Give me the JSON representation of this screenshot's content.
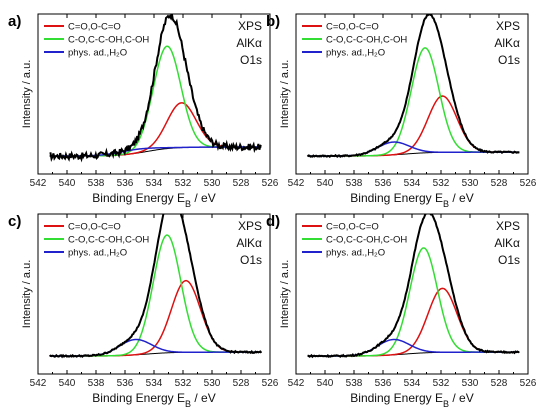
{
  "chart_data": [
    {
      "type": "line",
      "panel_label": "a)",
      "xlabel_main": "Binding Energy E",
      "xlabel_sub": "B",
      "xlabel_unit": " / eV",
      "ylabel": "Intensity / a.u.",
      "xlim": [
        542,
        526
      ],
      "xticks": [
        "542",
        "540",
        "538",
        "536",
        "534",
        "532",
        "530",
        "528",
        "526"
      ],
      "annotations": [
        "XPS",
        "AlKα",
        "O1s"
      ],
      "noisy": true,
      "components": [
        {
          "name": "C=O,O-C=O",
          "color": "#dd1111",
          "center": 532.1,
          "amplitude": 0.35,
          "width": 1.0
        },
        {
          "name": "C-O,C-C-OH,C-OH",
          "color": "#33dd33",
          "center": 533.1,
          "amplitude": 0.8,
          "width": 0.95
        },
        {
          "name": "phys. ad.,H₂O",
          "color": "#2222cc",
          "center": 535.3,
          "amplitude": 0.03,
          "width": 1.3
        }
      ],
      "baseline": {
        "left": 0.07,
        "right": 0.0
      }
    },
    {
      "type": "line",
      "panel_label": "b)",
      "xlabel_main": "Binding Energy E",
      "xlabel_sub": "B",
      "xlabel_unit": " / eV",
      "ylabel": "Intensity / a.u.",
      "xlim": [
        542,
        526
      ],
      "xticks": [
        "542",
        "540",
        "538",
        "536",
        "534",
        "532",
        "530",
        "528",
        "526"
      ],
      "annotations": [
        "XPS",
        "AlKα",
        "O1s"
      ],
      "noisy": false,
      "components": [
        {
          "name": "C=O,O-C=O",
          "color": "#dd1111",
          "center": 531.9,
          "amplitude": 0.44,
          "width": 1.0
        },
        {
          "name": "C-O,C-C-OH,C-OH",
          "color": "#33dd33",
          "center": 533.1,
          "amplitude": 0.82,
          "width": 0.95
        },
        {
          "name": "phys. ad.,H₂O",
          "color": "#2222cc",
          "center": 535.3,
          "amplitude": 0.1,
          "width": 1.1
        }
      ],
      "baseline": {
        "left": 0.03,
        "right": 0.0
      }
    },
    {
      "type": "line",
      "panel_label": "c)",
      "xlabel_main": "Binding Energy E",
      "xlabel_sub": "B",
      "xlabel_unit": " / eV",
      "ylabel": "Intensity / a.u.",
      "xlim": [
        542,
        526
      ],
      "xticks": [
        "542",
        "540",
        "538",
        "536",
        "534",
        "532",
        "530",
        "528",
        "526"
      ],
      "annotations": [
        "XPS",
        "AlKα",
        "O1s"
      ],
      "noisy": false,
      "components": [
        {
          "name": "C=O,O-C=O",
          "color": "#dd1111",
          "center": 531.8,
          "amplitude": 0.56,
          "width": 1.0
        },
        {
          "name": "C-O,C-C-OH,C-OH",
          "color": "#33dd33",
          "center": 533.1,
          "amplitude": 0.92,
          "width": 0.95
        },
        {
          "name": "phys. ad.,H₂O",
          "color": "#2222cc",
          "center": 535.3,
          "amplitude": 0.12,
          "width": 1.1
        }
      ],
      "baseline": {
        "left": 0.03,
        "right": 0.0
      }
    },
    {
      "type": "line",
      "panel_label": "d)",
      "xlabel_main": "Binding Energy E",
      "xlabel_sub": "B",
      "xlabel_unit": " / eV",
      "ylabel": "Intensity / a.u.",
      "xlim": [
        542,
        526
      ],
      "xticks": [
        "542",
        "540",
        "538",
        "536",
        "534",
        "532",
        "530",
        "528",
        "526"
      ],
      "annotations": [
        "XPS",
        "AlKα",
        "O1s"
      ],
      "noisy": false,
      "components": [
        {
          "name": "C=O,O-C=O",
          "color": "#dd1111",
          "center": 531.9,
          "amplitude": 0.5,
          "width": 1.0
        },
        {
          "name": "C-O,C-C-OH,C-OH",
          "color": "#33dd33",
          "center": 533.2,
          "amplitude": 0.82,
          "width": 0.95
        },
        {
          "name": "phys. ad.,H₂O",
          "color": "#2222cc",
          "center": 535.3,
          "amplitude": 0.12,
          "width": 1.1
        }
      ],
      "baseline": {
        "left": 0.03,
        "right": 0.0
      }
    }
  ]
}
